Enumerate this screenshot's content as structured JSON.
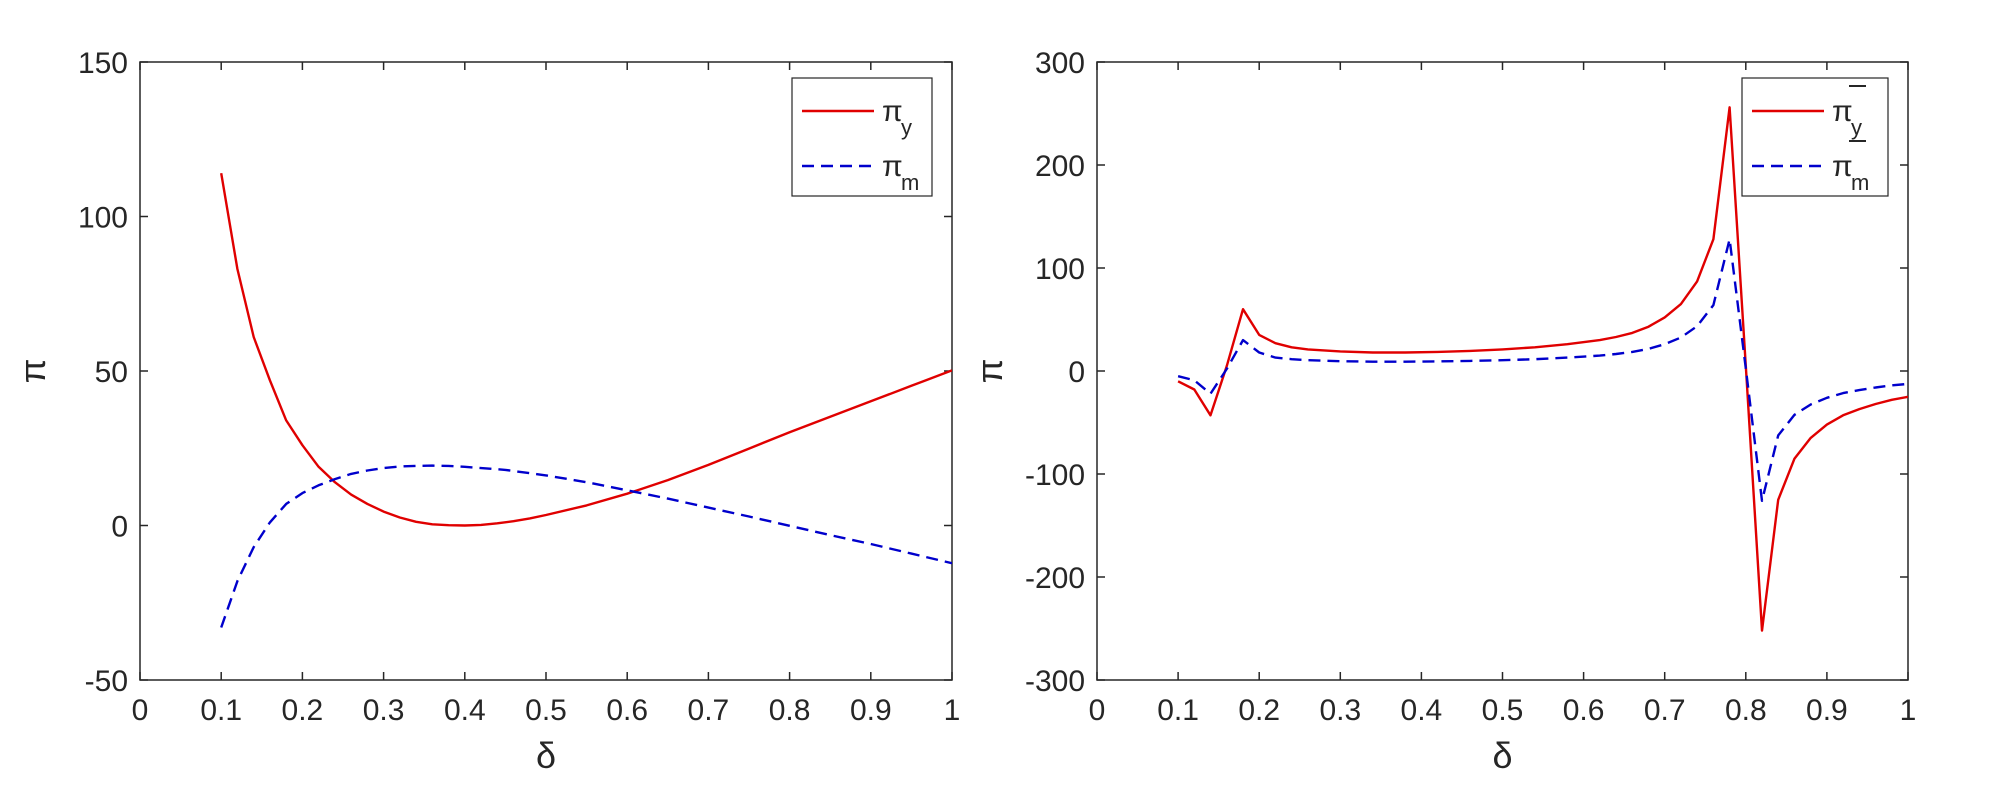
{
  "chart_data": [
    {
      "type": "line",
      "title": "",
      "xlabel": "δ",
      "ylabel": "π",
      "xlim": [
        0,
        1
      ],
      "ylim": [
        -50,
        150
      ],
      "xticks": [
        "0",
        "0.1",
        "0.2",
        "0.3",
        "0.4",
        "0.5",
        "0.6",
        "0.7",
        "0.8",
        "0.9",
        "1"
      ],
      "yticks": [
        "-50",
        "0",
        "50",
        "100",
        "150"
      ],
      "grid": false,
      "legend_position": "top-right",
      "series": [
        {
          "name": "π_y",
          "legend_main": "π",
          "legend_sub": "y",
          "legend_bar": false,
          "color": "#e00000",
          "style": "solid",
          "x": [
            0.1,
            0.12,
            0.14,
            0.16,
            0.18,
            0.2,
            0.22,
            0.24,
            0.26,
            0.28,
            0.3,
            0.32,
            0.34,
            0.36,
            0.38,
            0.4,
            0.42,
            0.44,
            0.46,
            0.48,
            0.5,
            0.55,
            0.6,
            0.65,
            0.7,
            0.75,
            0.8,
            0.85,
            0.9,
            0.95,
            1.0
          ],
          "y": [
            114,
            83,
            61,
            47,
            34,
            26,
            19,
            14,
            10,
            7,
            4.5,
            2.6,
            1.2,
            0.4,
            0.1,
            0,
            0.2,
            0.7,
            1.4,
            2.3,
            3.4,
            6.5,
            10.3,
            14.7,
            19.6,
            24.9,
            30.2,
            35.2,
            40.2,
            45.2,
            50.2
          ]
        },
        {
          "name": "π_m",
          "legend_main": "π",
          "legend_sub": "m",
          "legend_bar": false,
          "color": "#0000cc",
          "style": "dashed",
          "x": [
            0.1,
            0.12,
            0.14,
            0.16,
            0.18,
            0.2,
            0.22,
            0.24,
            0.26,
            0.28,
            0.3,
            0.32,
            0.34,
            0.36,
            0.38,
            0.4,
            0.45,
            0.5,
            0.55,
            0.6,
            0.65,
            0.7,
            0.75,
            0.8,
            0.85,
            0.9,
            0.95,
            1.0
          ],
          "y": [
            -33,
            -18,
            -7,
            1,
            7,
            10.5,
            13,
            15,
            16.7,
            17.8,
            18.6,
            19.1,
            19.3,
            19.4,
            19.3,
            19,
            18,
            16.2,
            14,
            11.4,
            8.7,
            5.8,
            2.9,
            -0.1,
            -3.1,
            -6,
            -9.1,
            -12.2
          ]
        }
      ]
    },
    {
      "type": "line",
      "title": "",
      "xlabel": "δ",
      "ylabel": "π",
      "xlim": [
        0,
        1
      ],
      "ylim": [
        -300,
        300
      ],
      "xticks": [
        "0",
        "0.1",
        "0.2",
        "0.3",
        "0.4",
        "0.5",
        "0.6",
        "0.7",
        "0.8",
        "0.9",
        "1"
      ],
      "yticks": [
        "-300",
        "-200",
        "-100",
        "0",
        "100",
        "200",
        "300"
      ],
      "grid": false,
      "legend_position": "top-right",
      "series": [
        {
          "name": "π̄_y",
          "legend_main": "π",
          "legend_sub": "y",
          "legend_bar": true,
          "color": "#e00000",
          "style": "solid",
          "x": [
            0.1,
            0.12,
            0.14,
            0.16,
            0.18,
            0.2,
            0.22,
            0.24,
            0.26,
            0.28,
            0.3,
            0.34,
            0.38,
            0.42,
            0.46,
            0.5,
            0.54,
            0.58,
            0.62,
            0.64,
            0.66,
            0.68,
            0.7,
            0.72,
            0.74,
            0.76,
            0.78,
            0.8,
            0.82,
            0.84,
            0.86,
            0.88,
            0.9,
            0.92,
            0.94,
            0.96,
            0.98,
            1.0
          ],
          "y": [
            -10,
            -18,
            -43,
            5,
            60,
            35,
            27,
            23,
            21,
            20,
            19,
            18,
            18,
            18.5,
            19.5,
            21,
            23,
            26,
            30,
            33,
            37,
            43,
            52,
            65,
            87,
            128,
            256,
            5,
            -252,
            -125,
            -85,
            -65,
            -52,
            -43,
            -37,
            -32,
            -28,
            -25
          ]
        },
        {
          "name": "π̄_m",
          "legend_main": "π",
          "legend_sub": "m",
          "legend_bar": true,
          "color": "#0000cc",
          "style": "dashed",
          "x": [
            0.1,
            0.12,
            0.14,
            0.16,
            0.18,
            0.2,
            0.22,
            0.24,
            0.26,
            0.28,
            0.3,
            0.34,
            0.38,
            0.42,
            0.46,
            0.5,
            0.54,
            0.58,
            0.62,
            0.64,
            0.66,
            0.68,
            0.7,
            0.72,
            0.74,
            0.76,
            0.78,
            0.8,
            0.82,
            0.84,
            0.86,
            0.88,
            0.9,
            0.92,
            0.94,
            0.96,
            0.98,
            1.0
          ],
          "y": [
            -5,
            -9,
            -22,
            2,
            30,
            18,
            13,
            11.5,
            10.5,
            10,
            9.5,
            9,
            9,
            9.3,
            9.8,
            10.5,
            11.5,
            13,
            15,
            16.5,
            18.5,
            21.5,
            26,
            32.5,
            43.5,
            64,
            128,
            2.5,
            -126,
            -62.5,
            -42.5,
            -32.5,
            -26,
            -21.5,
            -18.5,
            -16,
            -14,
            -12.5
          ]
        }
      ]
    }
  ]
}
